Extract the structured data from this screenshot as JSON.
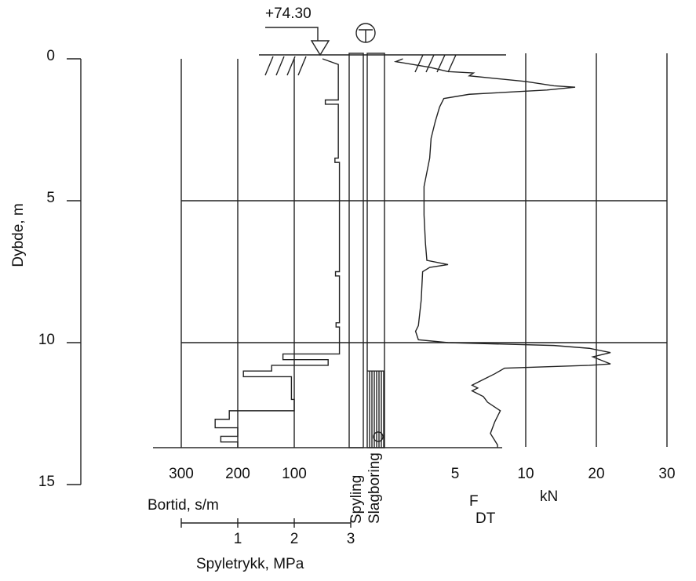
{
  "chart_data": [
    {
      "type": "line",
      "ylabel": "Dybde, m",
      "ylim": [
        0,
        15
      ],
      "yticks": [
        0,
        5,
        10,
        15
      ],
      "xlabel": "Bortid, s/m",
      "xlim": [
        300,
        0
      ],
      "xticks": [
        300,
        200,
        100
      ],
      "x2label": "Spyletrykk, MPa",
      "x2lim": [
        0,
        3
      ],
      "x2ticks": [
        1,
        2,
        3
      ],
      "elevation_label": "+74.30",
      "column_labels": [
        "Spyling",
        "Slagboring"
      ],
      "slagboring_from": 11.0,
      "end_depth": 13.7,
      "series": [
        {
          "color": "#222",
          "x": [
            50,
            22,
            22,
            45,
            45,
            22,
            22,
            28,
            28,
            20,
            20,
            27,
            27,
            20,
            20,
            26,
            26,
            20,
            20,
            120,
            120,
            40,
            40,
            140,
            140,
            190,
            190,
            105,
            105,
            100,
            100,
            215,
            215,
            240,
            240,
            200,
            200,
            230,
            230,
            200,
            200
          ],
          "y": [
            0,
            0.2,
            1.45,
            1.45,
            1.6,
            1.6,
            3.5,
            3.5,
            3.65,
            3.65,
            7.5,
            7.5,
            7.65,
            7.65,
            9.3,
            9.3,
            9.45,
            9.45,
            10.4,
            10.4,
            10.6,
            10.6,
            10.8,
            10.8,
            11.0,
            11.0,
            11.2,
            11.2,
            12.0,
            12.0,
            12.4,
            12.4,
            12.7,
            12.7,
            13.0,
            13.0,
            13.3,
            13.3,
            13.5,
            13.5,
            13.7
          ]
        }
      ]
    },
    {
      "type": "line",
      "xlabel": [
        "F",
        "DT",
        "kN"
      ],
      "xlim": [
        0,
        30
      ],
      "xticks": [
        5,
        10,
        20,
        30
      ],
      "series": [
        {
          "color": "#222",
          "x": [
            1.3,
            0.8,
            3.2,
            4.5,
            6.3,
            6,
            10,
            14,
            17,
            13,
            6,
            4.2,
            3.9,
            3.6,
            3.3,
            3.2,
            2.8,
            2.8,
            2.9,
            3.0,
            4.5,
            3.2,
            2.7,
            2.6,
            2.4,
            2.2,
            2.4,
            4.5,
            14,
            19,
            22,
            19.5,
            20.5,
            22,
            19,
            8.5,
            7.8,
            7,
            6.2,
            6.6,
            6.2,
            7,
            7.3,
            8.2,
            7.8,
            7.5,
            8,
            8
          ],
          "y": [
            0,
            0.1,
            0.3,
            0.45,
            0.5,
            0.6,
            0.8,
            0.95,
            1.0,
            1.1,
            1.25,
            1.4,
            1.7,
            2.2,
            2.8,
            3.5,
            4.5,
            5.5,
            6.5,
            7.1,
            7.25,
            7.35,
            7.5,
            8.5,
            9.4,
            9.6,
            9.9,
            10.0,
            10.1,
            10.2,
            10.35,
            10.5,
            10.6,
            10.75,
            10.8,
            10.9,
            11.1,
            11.3,
            11.5,
            11.6,
            11.7,
            11.9,
            12.1,
            12.4,
            12.8,
            13.2,
            13.6,
            13.7
          ]
        }
      ]
    }
  ]
}
